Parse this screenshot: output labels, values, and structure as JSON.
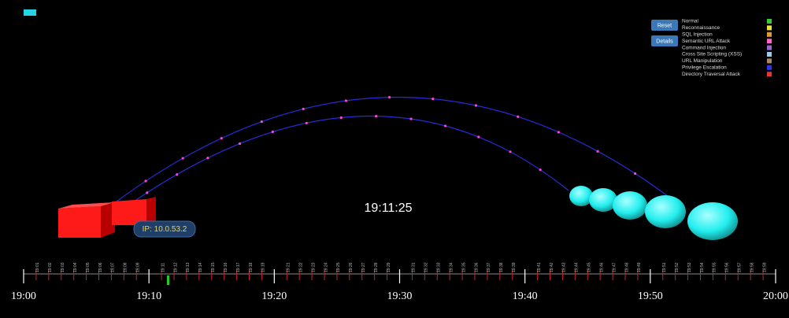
{
  "buttons": [
    "Reset",
    "Details"
  ],
  "legend": [
    {
      "label": "Normal",
      "color": "#33cc33"
    },
    {
      "label": "Reconnaissance",
      "color": "#e6e633"
    },
    {
      "label": "SQL Injection",
      "color": "#e69933"
    },
    {
      "label": "Semantic URL Attack",
      "color": "#ff66cc"
    },
    {
      "label": "Command Injection",
      "color": "#9966cc"
    },
    {
      "label": "Cross Site Scripting (XSS)",
      "color": "#99ccee"
    },
    {
      "label": "URL Manipulation",
      "color": "#aa8866"
    },
    {
      "label": "Privilege Escalation",
      "color": "#3333ee"
    },
    {
      "label": "Directory Traversal Attack",
      "color": "#ee3333"
    }
  ],
  "clock": "19:11:25",
  "ip_label": "IP: 10.0.53.2",
  "timeline": {
    "major": [
      "19:00",
      "19:10",
      "19:20",
      "19:30",
      "19:40",
      "19:50",
      "20:00"
    ],
    "minor": [
      "19:01",
      "19:02",
      "19:03",
      "19:04",
      "19:05",
      "19:06",
      "19:07",
      "19:08",
      "19:09",
      "19:11",
      "19:12",
      "19:13",
      "19:14",
      "19:15",
      "19:16",
      "19:17",
      "19:18",
      "19:19",
      "19:21",
      "19:22",
      "19:23",
      "19:24",
      "19:25",
      "19:26",
      "19:27",
      "19:28",
      "19:29",
      "19:31",
      "19:32",
      "19:33",
      "19:34",
      "19:35",
      "19:36",
      "19:37",
      "19:38",
      "19:39",
      "19:41",
      "19:42",
      "19:43",
      "19:44",
      "19:45",
      "19:46",
      "19:47",
      "19:48",
      "19:49",
      "19:51",
      "19:52",
      "19:53",
      "19:54",
      "19:55",
      "19:56",
      "19:57",
      "19:58",
      "19:59"
    ]
  }
}
